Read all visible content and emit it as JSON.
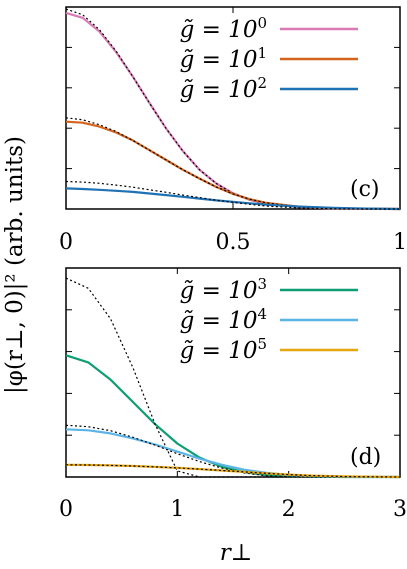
{
  "chart_data": [
    {
      "type": "line",
      "panel_label": "(c)",
      "xlim": [
        0,
        1
      ],
      "ylim": [
        0,
        1.03
      ],
      "x_ticks": [
        0,
        0.5,
        1
      ],
      "x_tick_labels": [
        "0",
        "0.5",
        "1"
      ],
      "ylabel": "|φ(r⊥, 0)|² (arb. units)",
      "legend_position": "top-right",
      "series": [
        {
          "name_base": "g̃ = 10",
          "name_exp": "0",
          "color": "#d97ab5",
          "x": [
            0,
            0.05,
            0.1,
            0.15,
            0.2,
            0.25,
            0.3,
            0.35,
            0.4,
            0.45,
            0.5,
            0.55,
            0.6,
            0.7,
            0.8,
            0.9,
            1.0
          ],
          "values": [
            1.0,
            0.975,
            0.905,
            0.8,
            0.675,
            0.54,
            0.41,
            0.295,
            0.2,
            0.13,
            0.08,
            0.047,
            0.027,
            0.009,
            0.003,
            0.001,
            0.0
          ],
          "approx_values": [
            1.02,
            0.99,
            0.915,
            0.805,
            0.675,
            0.54,
            0.41,
            0.295,
            0.2,
            0.13,
            0.08,
            0.047,
            0.027,
            0.009,
            0.003,
            0.001,
            0.0
          ]
        },
        {
          "name_base": "g̃ = 10",
          "name_exp": "1",
          "color": "#d4641c",
          "x": [
            0,
            0.05,
            0.1,
            0.15,
            0.2,
            0.25,
            0.3,
            0.35,
            0.4,
            0.45,
            0.5,
            0.55,
            0.6,
            0.7,
            0.8,
            0.9,
            1.0
          ],
          "values": [
            0.445,
            0.44,
            0.42,
            0.39,
            0.35,
            0.3,
            0.25,
            0.2,
            0.155,
            0.112,
            0.077,
            0.05,
            0.031,
            0.011,
            0.004,
            0.001,
            0.0
          ],
          "approx_values": [
            0.465,
            0.455,
            0.43,
            0.395,
            0.35,
            0.3,
            0.25,
            0.2,
            0.155,
            0.112,
            0.077,
            0.05,
            0.031,
            0.011,
            0.004,
            0.001,
            0.0
          ]
        },
        {
          "name_base": "g̃ = 10",
          "name_exp": "2",
          "color": "#1f72b4",
          "x": [
            0,
            0.05,
            0.1,
            0.15,
            0.2,
            0.25,
            0.3,
            0.35,
            0.4,
            0.45,
            0.5,
            0.55,
            0.6,
            0.7,
            0.8,
            0.9,
            1.0
          ],
          "values": [
            0.105,
            0.102,
            0.098,
            0.093,
            0.087,
            0.079,
            0.071,
            0.062,
            0.053,
            0.044,
            0.036,
            0.029,
            0.022,
            0.012,
            0.006,
            0.002,
            0.0
          ],
          "approx_values": [
            0.14,
            0.137,
            0.131,
            0.122,
            0.111,
            0.098,
            0.085,
            0.071,
            0.058,
            0.045,
            0.034,
            0.024,
            0.015,
            0.005,
            0.001,
            0.0,
            0.0
          ]
        }
      ]
    },
    {
      "type": "line",
      "panel_label": "(d)",
      "xlabel": "r⊥",
      "xlim": [
        0,
        3
      ],
      "ylim": [
        0,
        1.03
      ],
      "x_ticks": [
        0,
        1,
        2,
        3
      ],
      "x_tick_labels": [
        "0",
        "1",
        "2",
        "3"
      ],
      "legend_position": "top-right",
      "series": [
        {
          "name_base": "g̃ = 10",
          "name_exp": "3",
          "color": "#0e9e73",
          "x": [
            0,
            0.2,
            0.4,
            0.6,
            0.8,
            1.0,
            1.2,
            1.4,
            1.6,
            1.8,
            2.0,
            2.2,
            2.5,
            3.0
          ],
          "values": [
            0.6,
            0.565,
            0.48,
            0.37,
            0.26,
            0.165,
            0.095,
            0.05,
            0.024,
            0.01,
            0.004,
            0.002,
            0.0,
            0.0
          ],
          "approx_values": [
            0.98,
            0.93,
            0.78,
            0.54,
            0.26,
            0.03,
            0.0,
            0.0,
            0.0,
            0.0,
            0.0,
            0.0,
            0.0,
            0.0
          ]
        },
        {
          "name_base": "g̃ = 10",
          "name_exp": "4",
          "color": "#5cb4e6",
          "x": [
            0,
            0.2,
            0.4,
            0.6,
            0.8,
            1.0,
            1.2,
            1.4,
            1.6,
            1.8,
            2.0,
            2.2,
            2.5,
            3.0
          ],
          "values": [
            0.235,
            0.23,
            0.215,
            0.19,
            0.16,
            0.125,
            0.09,
            0.06,
            0.036,
            0.02,
            0.01,
            0.004,
            0.001,
            0.0
          ],
          "approx_values": [
            0.255,
            0.248,
            0.228,
            0.196,
            0.157,
            0.115,
            0.076,
            0.044,
            0.02,
            0.006,
            0.001,
            0.0,
            0.0,
            0.0
          ]
        },
        {
          "name_base": "g̃ = 10",
          "name_exp": "5",
          "color": "#e6a60f",
          "x": [
            0,
            0.2,
            0.4,
            0.6,
            0.8,
            1.0,
            1.2,
            1.4,
            1.6,
            1.8,
            2.0,
            2.2,
            2.5,
            3.0
          ],
          "values": [
            0.06,
            0.059,
            0.057,
            0.054,
            0.05,
            0.045,
            0.039,
            0.032,
            0.025,
            0.018,
            0.012,
            0.007,
            0.003,
            0.0
          ],
          "approx_values": [
            0.06,
            0.059,
            0.057,
            0.054,
            0.05,
            0.045,
            0.039,
            0.032,
            0.025,
            0.018,
            0.012,
            0.007,
            0.002,
            0.0
          ]
        }
      ]
    }
  ]
}
